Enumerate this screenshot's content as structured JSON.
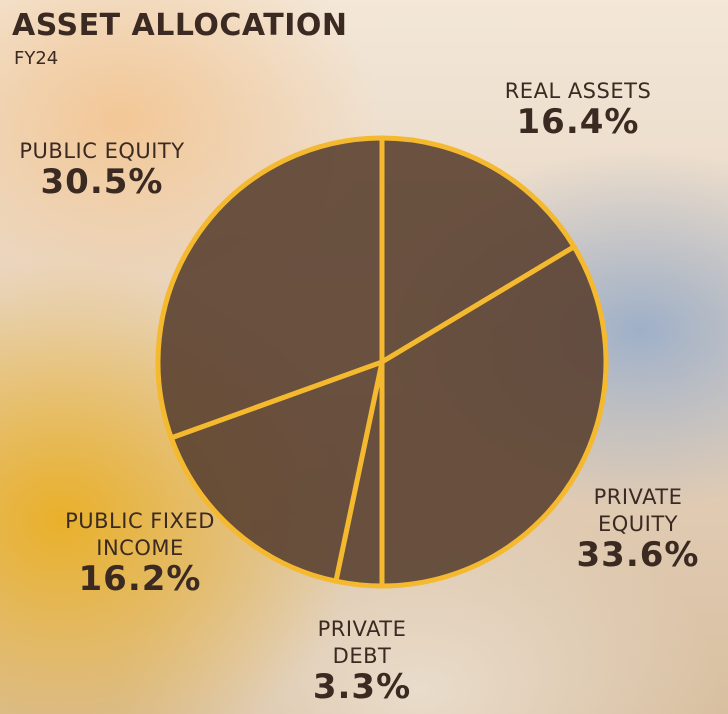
{
  "chart_data": {
    "type": "pie",
    "title": "ASSET ALLOCATION",
    "subtitle": "FY24",
    "categories": [
      "REAL ASSETS",
      "PRIVATE EQUITY",
      "PRIVATE DEBT",
      "PUBLIC FIXED INCOME",
      "PUBLIC EQUITY"
    ],
    "values": [
      16.4,
      33.6,
      3.3,
      16.2,
      30.5
    ],
    "value_labels": [
      "16.4%",
      "33.6%",
      "3.3%",
      "16.2%",
      "30.5%"
    ],
    "color": "#5b4131",
    "edge_color": "#f4b92e"
  }
}
